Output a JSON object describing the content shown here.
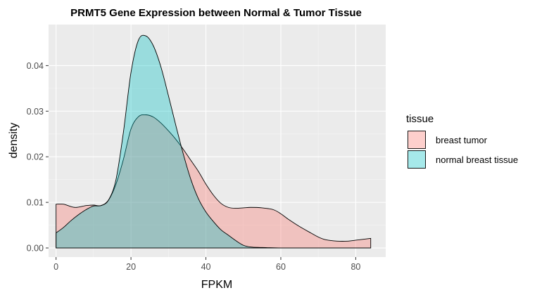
{
  "chart_data": {
    "type": "area",
    "subtype": "density",
    "title": "PRMT5 Gene Expression between Normal & Tumor Tissue",
    "xlabel": "FPKM",
    "ylabel": "density",
    "xlim": [
      -2,
      88
    ],
    "ylim": [
      -0.002,
      0.049
    ],
    "x_ticks": [
      0,
      20,
      40,
      60,
      80
    ],
    "x_tick_labels": [
      "0",
      "20",
      "40",
      "60",
      "80"
    ],
    "y_ticks": [
      0.0,
      0.01,
      0.02,
      0.03,
      0.04
    ],
    "y_tick_labels": [
      "0.00",
      "0.01",
      "0.02",
      "0.03",
      "0.04"
    ],
    "grid": true,
    "legend": {
      "title": "tissue",
      "position": "right",
      "entries": [
        {
          "label": "breast tumor",
          "color": "#F8766D"
        },
        {
          "label": "normal breast tissue",
          "color": "#00BFC4"
        }
      ]
    },
    "background": "#EBEBEB",
    "fill_alpha": 0.35,
    "series": [
      {
        "name": "breast tumor",
        "color": "#F8766D",
        "x": [
          0,
          2,
          5,
          8,
          10,
          12,
          14,
          16,
          18,
          20,
          22,
          24,
          26,
          28,
          30,
          32,
          34,
          36,
          38,
          40,
          42,
          44,
          46,
          48,
          50,
          52,
          55,
          58,
          60,
          62,
          65,
          68,
          70,
          72,
          75,
          78,
          80,
          82,
          84
        ],
        "y": [
          0.0096,
          0.0096,
          0.0089,
          0.0093,
          0.0094,
          0.0093,
          0.0105,
          0.014,
          0.0195,
          0.0261,
          0.0288,
          0.0292,
          0.0287,
          0.0274,
          0.0257,
          0.0238,
          0.0216,
          0.0192,
          0.0168,
          0.014,
          0.0116,
          0.0098,
          0.0089,
          0.0087,
          0.0088,
          0.0089,
          0.0088,
          0.0084,
          0.0075,
          0.0063,
          0.0047,
          0.0033,
          0.0024,
          0.0018,
          0.0015,
          0.0015,
          0.0017,
          0.0019,
          0.0021
        ]
      },
      {
        "name": "normal breast tissue",
        "color": "#00BFC4",
        "x": [
          0,
          2,
          4,
          6,
          8,
          10,
          12,
          14,
          16,
          18,
          20,
          22,
          24,
          26,
          28,
          30,
          32,
          34,
          36,
          38,
          40,
          42,
          44,
          46,
          48,
          50,
          52,
          55,
          60,
          65,
          70,
          75,
          80,
          84
        ],
        "y": [
          0.0033,
          0.0045,
          0.006,
          0.0073,
          0.0084,
          0.0092,
          0.0093,
          0.0105,
          0.015,
          0.0255,
          0.0385,
          0.0456,
          0.0465,
          0.0443,
          0.0397,
          0.0334,
          0.0268,
          0.0205,
          0.015,
          0.0108,
          0.0079,
          0.0058,
          0.004,
          0.0028,
          0.0016,
          0.0006,
          0.0002,
          0.0001,
          0.0,
          0.0,
          0.0,
          0.0,
          0.0,
          0.0
        ]
      }
    ]
  }
}
